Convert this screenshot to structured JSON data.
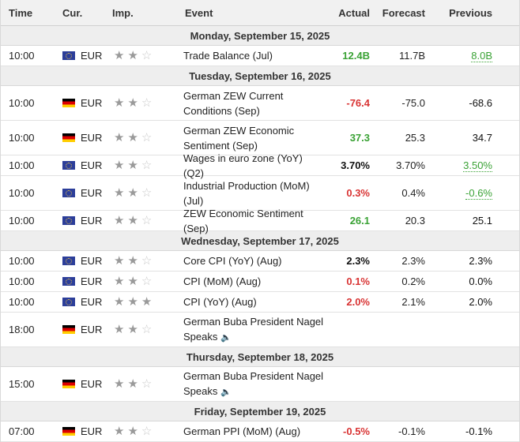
{
  "header": {
    "time": "Time",
    "currency": "Cur.",
    "importance": "Imp.",
    "event": "Event",
    "actual": "Actual",
    "forecast": "Forecast",
    "previous": "Previous"
  },
  "colors": {
    "positive": "#3aa235",
    "negative": "#d93434",
    "day_bg": "#eeeeee"
  },
  "days": [
    {
      "label": "Monday, September 15, 2025",
      "events": [
        {
          "time": "10:00",
          "flag": "eu-flag-icon",
          "cur": "EUR",
          "stars": 2,
          "event": "Trade Balance (Jul)",
          "actual": "12.4B",
          "actual_color": "green",
          "forecast": "11.7B",
          "previous": "8.0B",
          "previous_color": "green",
          "previous_revised": true
        }
      ]
    },
    {
      "label": "Tuesday, September 16, 2025",
      "events": [
        {
          "time": "10:00",
          "flag": "de-flag-icon",
          "cur": "EUR",
          "stars": 2,
          "event": "German ZEW Current Conditions (Sep)",
          "actual": "-76.4",
          "actual_color": "red",
          "forecast": "-75.0",
          "previous": "-68.6",
          "previous_color": "black"
        },
        {
          "time": "10:00",
          "flag": "de-flag-icon",
          "cur": "EUR",
          "stars": 2,
          "event": "German ZEW Economic Sentiment (Sep)",
          "actual": "37.3",
          "actual_color": "green",
          "forecast": "25.3",
          "previous": "34.7",
          "previous_color": "black"
        },
        {
          "time": "10:00",
          "flag": "eu-flag-icon",
          "cur": "EUR",
          "stars": 2,
          "event": "Wages in euro zone (YoY) (Q2)",
          "actual": "3.70%",
          "actual_color": "black",
          "forecast": "3.70%",
          "previous": "3.50%",
          "previous_color": "green",
          "previous_revised": true
        },
        {
          "time": "10:00",
          "flag": "eu-flag-icon",
          "cur": "EUR",
          "stars": 2,
          "event": "Industrial Production (MoM) (Jul)",
          "actual": "0.3%",
          "actual_color": "red",
          "forecast": "0.4%",
          "previous": "-0.6%",
          "previous_color": "green",
          "previous_revised": true
        },
        {
          "time": "10:00",
          "flag": "eu-flag-icon",
          "cur": "EUR",
          "stars": 2,
          "event": "ZEW Economic Sentiment (Sep)",
          "actual": "26.1",
          "actual_color": "green",
          "forecast": "20.3",
          "previous": "25.1",
          "previous_color": "black"
        }
      ]
    },
    {
      "label": "Wednesday, September 17, 2025",
      "events": [
        {
          "time": "10:00",
          "flag": "eu-flag-icon",
          "cur": "EUR",
          "stars": 2,
          "event": "Core CPI (YoY) (Aug)",
          "actual": "2.3%",
          "actual_color": "black",
          "forecast": "2.3%",
          "previous": "2.3%",
          "previous_color": "black"
        },
        {
          "time": "10:00",
          "flag": "eu-flag-icon",
          "cur": "EUR",
          "stars": 2,
          "event": "CPI (MoM) (Aug)",
          "actual": "0.1%",
          "actual_color": "red",
          "forecast": "0.2%",
          "previous": "0.0%",
          "previous_color": "black"
        },
        {
          "time": "10:00",
          "flag": "eu-flag-icon",
          "cur": "EUR",
          "stars": 3,
          "event": "CPI (YoY) (Aug)",
          "actual": "2.0%",
          "actual_color": "red",
          "forecast": "2.1%",
          "previous": "2.0%",
          "previous_color": "black"
        },
        {
          "time": "18:00",
          "flag": "de-flag-icon",
          "cur": "EUR",
          "stars": 2,
          "event": "German Buba President Nagel Speaks",
          "speech": true,
          "actual": "",
          "forecast": "",
          "previous": ""
        }
      ]
    },
    {
      "label": "Thursday, September 18, 2025",
      "events": [
        {
          "time": "15:00",
          "flag": "de-flag-icon",
          "cur": "EUR",
          "stars": 2,
          "event": "German Buba President Nagel Speaks",
          "speech": true,
          "actual": "",
          "forecast": "",
          "previous": ""
        }
      ]
    },
    {
      "label": "Friday, September 19, 2025",
      "events": [
        {
          "time": "07:00",
          "flag": "de-flag-icon",
          "cur": "EUR",
          "stars": 2,
          "event": "German PPI (MoM) (Aug)",
          "actual": "-0.5%",
          "actual_color": "red",
          "forecast": "-0.1%",
          "previous": "-0.1%",
          "previous_color": "black"
        }
      ]
    }
  ]
}
